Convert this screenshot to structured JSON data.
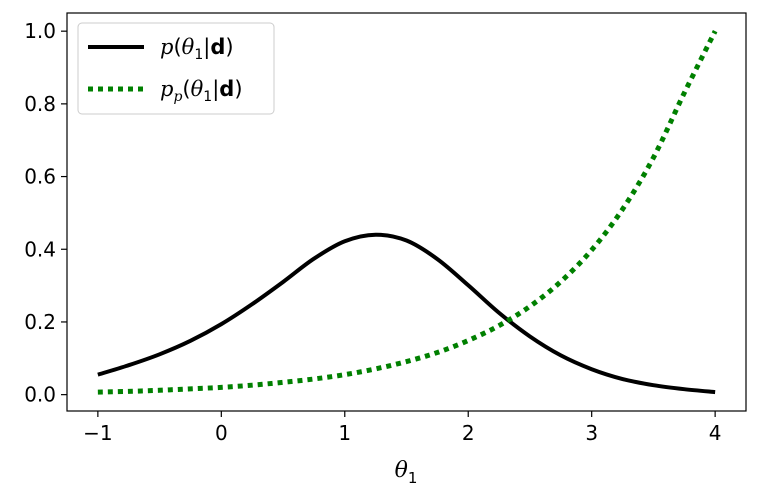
{
  "chart_data": {
    "type": "line",
    "title": "",
    "xlabel": "θ₁",
    "ylabel": "",
    "xlim": [
      -1.25,
      4.25
    ],
    "ylim": [
      -0.045,
      1.05
    ],
    "xticks": [
      -1,
      0,
      1,
      2,
      3,
      4
    ],
    "xtick_labels": [
      "−1",
      "0",
      "1",
      "2",
      "3",
      "4"
    ],
    "yticks": [
      0.0,
      0.2,
      0.4,
      0.6,
      0.8,
      1.0
    ],
    "ytick_labels": [
      "0.0",
      "0.2",
      "0.4",
      "0.6",
      "0.8",
      "1.0"
    ],
    "grid": false,
    "legend_position": "top-left",
    "series": [
      {
        "name": "p(θ₁|d)",
        "color": "#000000",
        "style": "solid",
        "x": [
          -1.0,
          -0.75,
          -0.5,
          -0.25,
          0.0,
          0.25,
          0.5,
          0.75,
          1.0,
          1.25,
          1.5,
          1.75,
          2.0,
          2.25,
          2.5,
          2.75,
          3.0,
          3.25,
          3.5,
          3.75,
          4.0
        ],
        "y": [
          0.055,
          0.081,
          0.111,
          0.148,
          0.194,
          0.249,
          0.31,
          0.374,
          0.422,
          0.44,
          0.424,
          0.373,
          0.301,
          0.225,
          0.16,
          0.108,
          0.07,
          0.043,
          0.026,
          0.015,
          0.007
        ]
      },
      {
        "name": "p_p(θ₁|d)",
        "color": "#008000",
        "style": "dotted",
        "x": [
          -1.0,
          -0.75,
          -0.5,
          -0.25,
          0.0,
          0.25,
          0.5,
          0.75,
          1.0,
          1.25,
          1.5,
          1.75,
          2.0,
          2.25,
          2.5,
          2.75,
          3.0,
          3.25,
          3.5,
          3.75,
          4.0
        ],
        "y": [
          0.007,
          0.009,
          0.012,
          0.016,
          0.02,
          0.026,
          0.034,
          0.043,
          0.055,
          0.071,
          0.091,
          0.116,
          0.149,
          0.19,
          0.243,
          0.311,
          0.398,
          0.51,
          0.652,
          0.83,
          1.0
        ]
      }
    ]
  }
}
